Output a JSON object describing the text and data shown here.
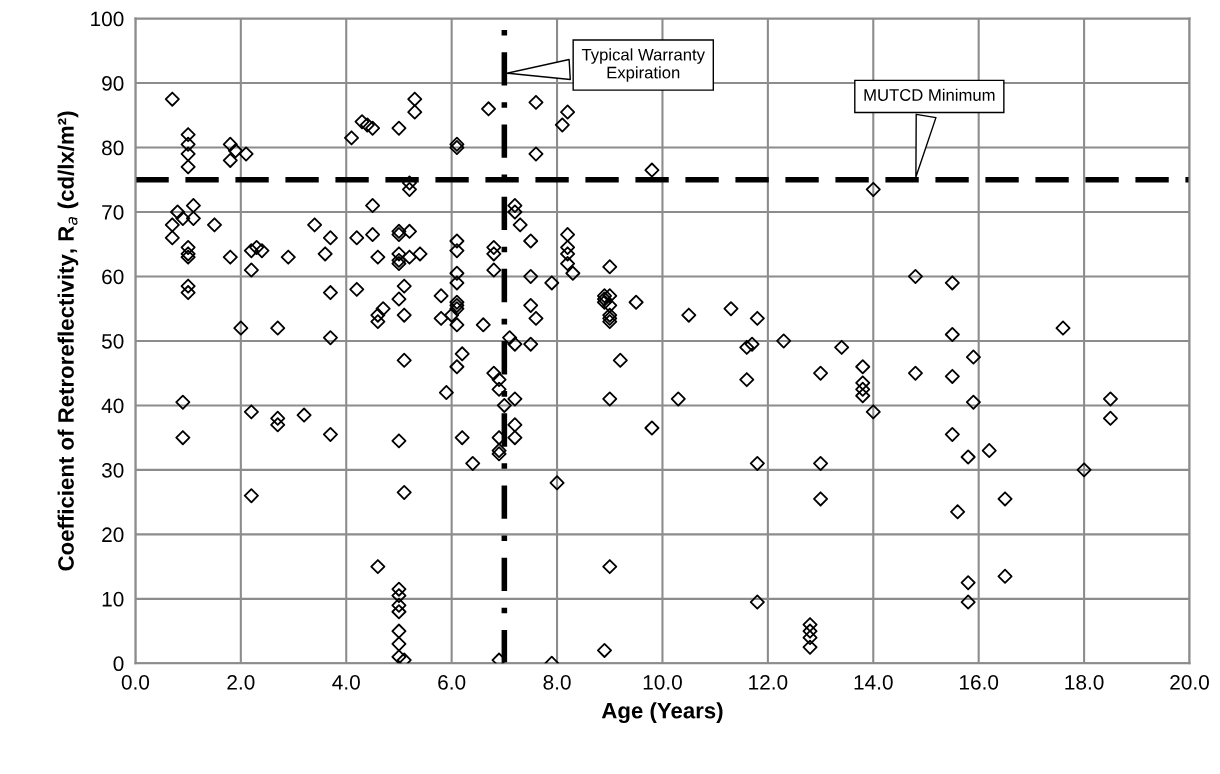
{
  "chart_data": {
    "type": "scatter",
    "xlabel": "Age (Years)",
    "ylabel": "Coefficient of Retroreflectivity, R$_{a}$ (cd/lx/m²)",
    "xlim": [
      0,
      20
    ],
    "ylim": [
      0,
      100
    ],
    "xticks": [
      {
        "value": 0,
        "label": "0.0"
      },
      {
        "value": 2,
        "label": "2.0"
      },
      {
        "value": 4,
        "label": "4.0"
      },
      {
        "value": 6,
        "label": "6.0"
      },
      {
        "value": 8,
        "label": "8.0"
      },
      {
        "value": 10,
        "label": "10.0"
      },
      {
        "value": 12,
        "label": "12.0"
      },
      {
        "value": 14,
        "label": "14.0"
      },
      {
        "value": 16,
        "label": "16.0"
      },
      {
        "value": 18,
        "label": "18.0"
      },
      {
        "value": 20,
        "label": "20.0"
      }
    ],
    "yticks": [
      0,
      10,
      20,
      30,
      40,
      50,
      60,
      70,
      80,
      90,
      100
    ],
    "grid": true,
    "marker": "diamond",
    "ref_lines": [
      {
        "axis": "y",
        "value": 75,
        "label": "MUTCD Minimum",
        "color": "#000000",
        "line_style": "dashed"
      },
      {
        "axis": "x",
        "value": 7,
        "label": "Typical Warranty\nExpiration",
        "color": "#000000",
        "line_style": "dashdot"
      }
    ],
    "series": [
      {
        "color": "#000000",
        "x": [
          0.7,
          0.7,
          0.7,
          0.8,
          0.9,
          1.0,
          1.0,
          1.0,
          1.0,
          1.1,
          1.1,
          1.0,
          1.0,
          1.0,
          1.0,
          1.0,
          0.9,
          0.9,
          1.5,
          1.8,
          1.8,
          1.8,
          1.9,
          2.1,
          2.0,
          2.2,
          2.3,
          2.4,
          2.2,
          2.2,
          2.2,
          2.7,
          2.7,
          2.7,
          2.9,
          3.2,
          3.4,
          3.6,
          3.7,
          3.7,
          3.7,
          3.7,
          4.1,
          4.2,
          4.2,
          4.3,
          4.4,
          4.5,
          4.5,
          4.5,
          4.6,
          4.6,
          4.6,
          4.7,
          4.6,
          5.0,
          5.0,
          5.0,
          5.0,
          5.0,
          5.0,
          5.0,
          5.0,
          5.0,
          5.0,
          5.0,
          5.0,
          5.0,
          5.0,
          5.0,
          5.1,
          5.1,
          5.1,
          5.1,
          5.1,
          5.2,
          5.2,
          5.2,
          5.2,
          5.3,
          5.3,
          5.4,
          5.8,
          5.8,
          5.9,
          6.0,
          6.1,
          6.1,
          6.1,
          6.1,
          6.1,
          6.1,
          6.1,
          6.1,
          6.1,
          6.1,
          6.1,
          6.2,
          6.2,
          6.4,
          6.6,
          6.7,
          6.8,
          6.8,
          6.8,
          6.8,
          6.9,
          6.9,
          6.9,
          6.9,
          6.9,
          6.9,
          7.0,
          7.1,
          7.2,
          7.2,
          7.3,
          7.2,
          7.2,
          7.2,
          7.2,
          7.6,
          7.6,
          7.5,
          7.5,
          7.5,
          7.6,
          7.5,
          7.9,
          8.0,
          7.9,
          8.1,
          8.2,
          8.2,
          8.2,
          8.2,
          8.2,
          8.3,
          8.9,
          8.9,
          8.9,
          9.0,
          9.0,
          9.0,
          9.0,
          9.0,
          9.0,
          9.0,
          9.0,
          8.9,
          9.2,
          9.5,
          9.8,
          9.8,
          10.3,
          10.5,
          11.3,
          11.6,
          11.6,
          11.7,
          11.8,
          11.8,
          11.8,
          12.3,
          12.8,
          12.8,
          12.8,
          12.8,
          13.0,
          13.0,
          13.0,
          13.4,
          13.8,
          13.8,
          13.8,
          13.8,
          14.0,
          14.0,
          14.8,
          14.8,
          15.5,
          15.5,
          15.5,
          15.5,
          15.6,
          15.8,
          15.8,
          15.8,
          15.9,
          15.9,
          16.2,
          16.5,
          16.5,
          17.6,
          18.0,
          18.5,
          18.5
        ],
        "values": [
          87.5,
          68,
          66,
          70,
          69,
          82,
          80.5,
          79,
          77,
          71,
          69,
          64.5,
          63.5,
          63,
          58.5,
          57.5,
          40.5,
          35,
          68,
          80.5,
          78,
          63,
          79.5,
          79,
          52,
          64,
          64.5,
          64,
          61,
          39,
          26,
          52,
          38,
          37,
          63,
          38.5,
          68,
          63.5,
          66,
          57.5,
          50.5,
          35.5,
          81.5,
          66,
          58,
          84,
          83.5,
          83,
          71,
          66.5,
          63,
          54,
          53,
          55,
          15,
          83,
          67,
          66.5,
          63.5,
          62.5,
          62,
          56.5,
          34.5,
          11.5,
          10.5,
          9,
          8,
          5,
          3,
          1,
          0.5,
          58.5,
          54,
          47,
          26.5,
          67,
          63,
          74.5,
          73.5,
          85.5,
          87.5,
          63.5,
          57,
          53.5,
          42,
          54,
          80.5,
          80,
          65.5,
          64,
          60.5,
          59,
          56,
          55.5,
          55,
          52.5,
          46,
          48,
          35,
          31,
          52.5,
          86,
          64.5,
          63.5,
          61,
          45,
          44,
          42.5,
          35,
          33,
          32.5,
          0.5,
          40,
          50.5,
          71,
          70,
          68,
          49.5,
          41,
          37,
          35,
          87,
          79,
          65.5,
          60,
          55.5,
          53.5,
          49.5,
          59,
          28,
          0,
          83.5,
          85.5,
          66.5,
          64.5,
          63.5,
          62,
          60.5,
          57,
          56.5,
          56,
          55.5,
          54,
          53.5,
          53,
          57,
          61.5,
          41,
          15,
          2,
          47,
          56,
          76.5,
          36.5,
          41,
          54,
          55,
          49,
          44,
          49.5,
          53.5,
          31,
          9.5,
          50,
          6,
          5,
          4,
          2.5,
          45,
          31,
          25.5,
          49,
          46,
          43.5,
          42.5,
          41.5,
          39,
          73.5,
          60,
          45,
          59,
          51,
          44.5,
          35.5,
          23.5,
          32,
          12.5,
          9.5,
          47.5,
          40.5,
          33,
          25.5,
          13.5,
          52,
          30,
          41,
          38
        ]
      }
    ]
  }
}
